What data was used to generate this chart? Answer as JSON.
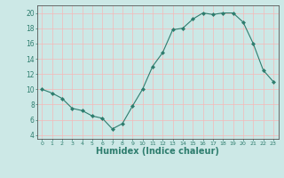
{
  "x": [
    0,
    1,
    2,
    3,
    4,
    5,
    6,
    7,
    8,
    9,
    10,
    11,
    12,
    13,
    14,
    15,
    16,
    17,
    18,
    19,
    20,
    21,
    22,
    23
  ],
  "y": [
    10,
    9.5,
    8.8,
    7.5,
    7.2,
    6.5,
    6.2,
    4.8,
    5.5,
    7.8,
    10,
    13,
    14.8,
    17.8,
    18,
    19.2,
    20,
    19.8,
    20,
    20,
    18.8,
    16,
    12.5,
    11
  ],
  "line_color": "#2e7d6e",
  "marker": "D",
  "marker_size": 2.0,
  "bg_color": "#cce8e6",
  "grid_color": "#f5b8b8",
  "xlabel": "Humidex (Indice chaleur)",
  "xlabel_fontsize": 7,
  "ytick_labels": [
    "4",
    "6",
    "8",
    "10",
    "12",
    "14",
    "16",
    "18",
    "20"
  ],
  "ytick_vals": [
    4,
    6,
    8,
    10,
    12,
    14,
    16,
    18,
    20
  ],
  "xlim": [
    -0.5,
    23.5
  ],
  "ylim": [
    3.5,
    21.0
  ]
}
